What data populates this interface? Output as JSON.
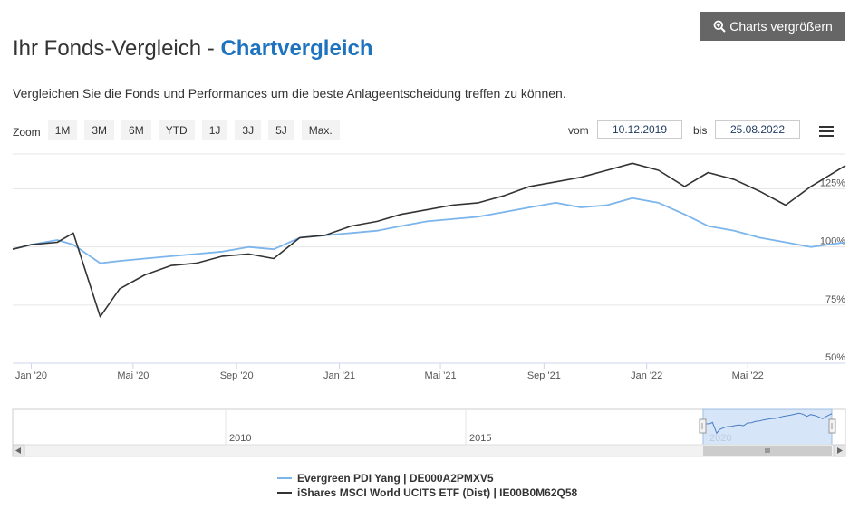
{
  "header": {
    "title_main": "Ihr Fonds-Vergleich - ",
    "title_accent": "Chartvergleich",
    "intro": "Vergleichen Sie die Fonds und Performances um die beste Anlageentscheidung treffen zu können.",
    "enlarge_label": "Charts vergrößern"
  },
  "toolbar": {
    "zoom_label": "Zoom",
    "zoom_buttons": [
      "1M",
      "3M",
      "6M",
      "YTD",
      "1J",
      "3J",
      "5J",
      "Max."
    ],
    "from_label": "vom",
    "from_value": "10.12.2019",
    "to_label": "bis",
    "to_value": "25.08.2022"
  },
  "navigator": {
    "year_labels": [
      "2010",
      "2015",
      "2020"
    ]
  },
  "colors": {
    "series1": "#7cb5ec",
    "series2": "#333333",
    "accent": "#1e73be"
  },
  "chart_data": {
    "type": "line",
    "x_tick_labels": [
      "Jan '20",
      "Mai '20",
      "Sep '20",
      "Jan '21",
      "Mai '21",
      "Sep '21",
      "Jan '22",
      "Mai '22"
    ],
    "y_tick_labels": [
      "50%",
      "75%",
      "100%",
      "125%"
    ],
    "ylim": [
      50,
      140
    ],
    "x": [
      "2019-12-10",
      "2020-01-01",
      "2020-02-01",
      "2020-02-20",
      "2020-03-23",
      "2020-04-15",
      "2020-05-15",
      "2020-06-15",
      "2020-07-15",
      "2020-08-15",
      "2020-09-15",
      "2020-10-15",
      "2020-11-15",
      "2020-12-15",
      "2021-01-15",
      "2021-02-15",
      "2021-03-15",
      "2021-04-15",
      "2021-05-15",
      "2021-06-15",
      "2021-07-15",
      "2021-08-15",
      "2021-09-15",
      "2021-10-15",
      "2021-11-15",
      "2021-12-15",
      "2022-01-15",
      "2022-02-15",
      "2022-03-15",
      "2022-04-15",
      "2022-05-15",
      "2022-06-15",
      "2022-07-15",
      "2022-08-25"
    ],
    "series": [
      {
        "name": "Evergreen PDI Yang | DE000A2PMXV5",
        "values": [
          99,
          101,
          103,
          101,
          93,
          94,
          95,
          96,
          97,
          98,
          100,
          99,
          104,
          105,
          106,
          107,
          109,
          111,
          112,
          113,
          115,
          117,
          119,
          117,
          118,
          121,
          119,
          114,
          109,
          107,
          104,
          102,
          100,
          102
        ]
      },
      {
        "name": "iShares MSCI World UCITS ETF (Dist) | IE00B0M62Q58",
        "values": [
          99,
          101,
          102,
          106,
          70,
          82,
          88,
          92,
          93,
          96,
          97,
          95,
          104,
          105,
          109,
          111,
          114,
          116,
          118,
          119,
          122,
          126,
          128,
          130,
          133,
          136,
          133,
          126,
          132,
          129,
          124,
          118,
          126,
          135
        ]
      }
    ]
  }
}
